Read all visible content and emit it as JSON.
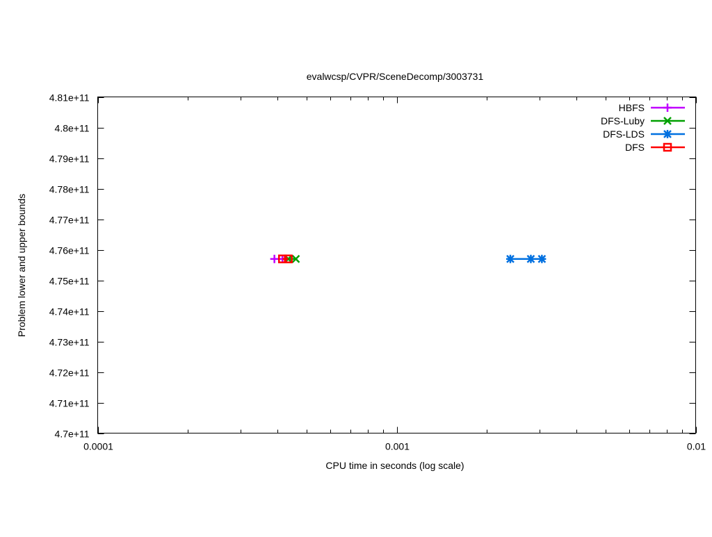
{
  "chart_data": {
    "type": "line",
    "title": "evalwcsp/CVPR/SceneDecomp/3003731",
    "xlabel": "CPU time in seconds (log scale)",
    "ylabel": "Problem lower and upper bounds",
    "xscale": "log",
    "xlim": [
      0.0001,
      0.01
    ],
    "ylim": [
      470000000000,
      481000000000
    ],
    "xticks": [
      {
        "value": 0.0001,
        "label": "0.0001"
      },
      {
        "value": 0.001,
        "label": "0.001"
      },
      {
        "value": 0.01,
        "label": "0.01"
      }
    ],
    "yticks": [
      {
        "value": 470000000000,
        "label": "4.7e+11"
      },
      {
        "value": 471000000000,
        "label": "4.71e+11"
      },
      {
        "value": 472000000000,
        "label": "4.72e+11"
      },
      {
        "value": 473000000000,
        "label": "4.73e+11"
      },
      {
        "value": 474000000000,
        "label": "4.74e+11"
      },
      {
        "value": 475000000000,
        "label": "4.75e+11"
      },
      {
        "value": 476000000000,
        "label": "4.76e+11"
      },
      {
        "value": 477000000000,
        "label": "4.77e+11"
      },
      {
        "value": 478000000000,
        "label": "4.78e+11"
      },
      {
        "value": 479000000000,
        "label": "4.79e+11"
      },
      {
        "value": 480000000000,
        "label": "4.8e+11"
      },
      {
        "value": 481000000000,
        "label": "4.81e+11"
      }
    ],
    "grid": false,
    "legend_position": "top-right",
    "series": [
      {
        "name": "HBFS",
        "color": "#c000ff",
        "marker": "plus",
        "x": [
          0.00039,
          0.000415
        ],
        "y": [
          475700000000,
          475700000000
        ]
      },
      {
        "name": "DFS-Luby",
        "color": "#00a000",
        "marker": "cross",
        "x": [
          0.000434,
          0.00046
        ],
        "y": [
          475700000000,
          475700000000
        ]
      },
      {
        "name": "DFS-LDS",
        "color": "#0070e0",
        "marker": "star",
        "x": [
          0.0024,
          0.00281,
          0.00306
        ],
        "y": [
          475700000000,
          475700000000,
          475700000000
        ]
      },
      {
        "name": "DFS",
        "color": "#ff0000",
        "marker": "square",
        "x": [
          0.000415,
          0.000434
        ],
        "y": [
          475700000000,
          475700000000
        ]
      }
    ]
  }
}
